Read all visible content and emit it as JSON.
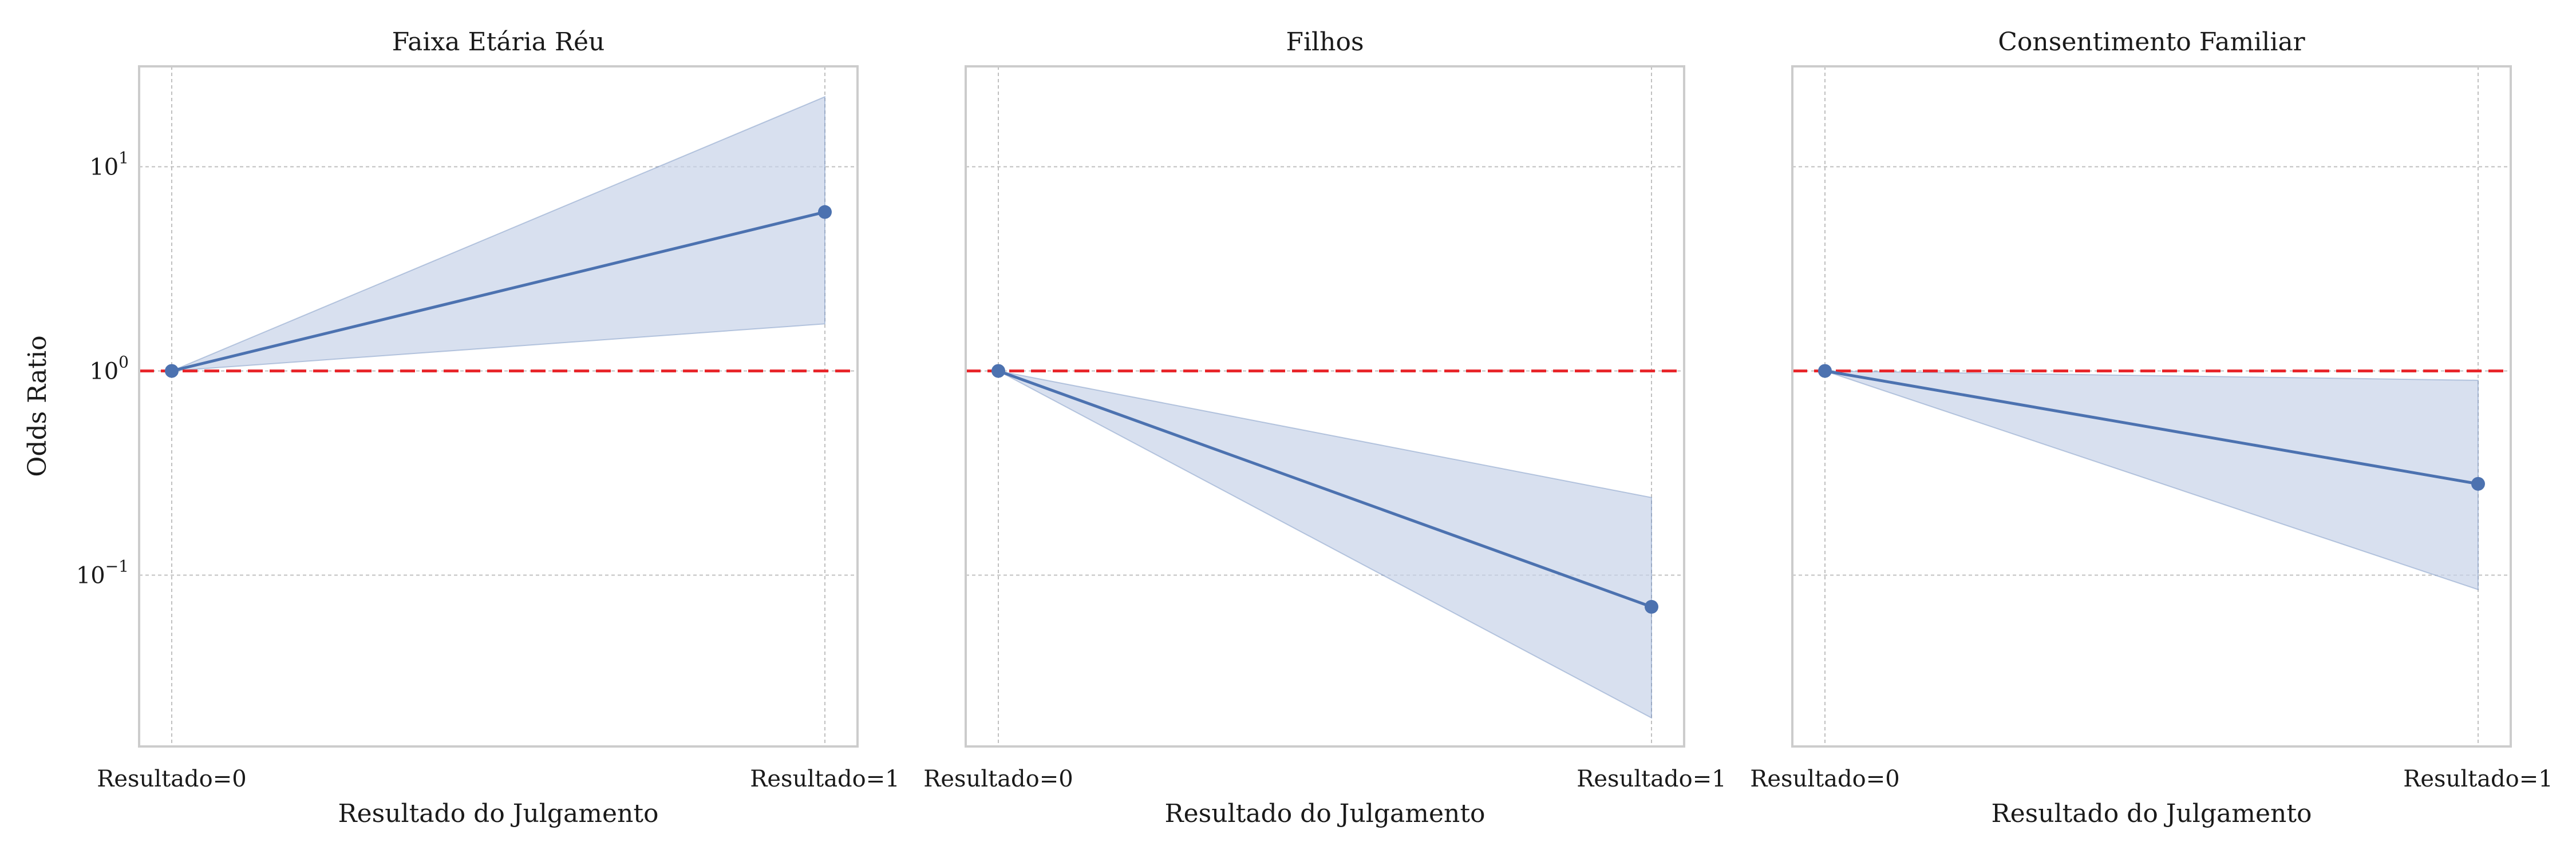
{
  "figure": {
    "y_axis_label": "Odds Ratio",
    "reference_line": {
      "value": 1,
      "color": "#e8262b",
      "style": "dashed"
    },
    "colors": {
      "series": "#4c72b0",
      "band": "#c8d3e8",
      "grid": "#c0c0c0",
      "frame": "#cccccc"
    }
  },
  "chart_data": [
    {
      "type": "line",
      "title": "Faixa Etária Réu",
      "xlabel": "Resultado do Julgamento",
      "ylabel": "Odds Ratio",
      "categories": [
        "Resultado=0",
        "Resultado=1"
      ],
      "y_scale": "log",
      "ylim": [
        0.0145,
        31
      ],
      "y_ticks": [
        {
          "value": 0.1,
          "base": "10",
          "exp": "−1"
        },
        {
          "value": 1,
          "base": "10",
          "exp": "0"
        },
        {
          "value": 10,
          "base": "10",
          "exp": "1"
        }
      ],
      "grid": true,
      "series": [
        {
          "values": [
            1.0,
            6.0
          ],
          "ci_lower": [
            1.0,
            1.7
          ],
          "ci_upper": [
            1.0,
            22.0
          ]
        }
      ]
    },
    {
      "type": "line",
      "title": "Filhos",
      "xlabel": "Resultado do Julgamento",
      "ylabel": "",
      "categories": [
        "Resultado=0",
        "Resultado=1"
      ],
      "y_scale": "log",
      "ylim": [
        0.0145,
        31
      ],
      "y_ticks": [],
      "grid": true,
      "series": [
        {
          "values": [
            1.0,
            0.07
          ],
          "ci_lower": [
            1.0,
            0.02
          ],
          "ci_upper": [
            1.0,
            0.24
          ]
        }
      ]
    },
    {
      "type": "line",
      "title": "Consentimento Familiar",
      "xlabel": "Resultado do Julgamento",
      "ylabel": "",
      "categories": [
        "Resultado=0",
        "Resultado=1"
      ],
      "y_scale": "log",
      "ylim": [
        0.0145,
        31
      ],
      "y_ticks": [],
      "grid": true,
      "series": [
        {
          "values": [
            1.0,
            0.28
          ],
          "ci_lower": [
            1.0,
            0.085
          ],
          "ci_upper": [
            1.0,
            0.9
          ]
        }
      ]
    }
  ]
}
